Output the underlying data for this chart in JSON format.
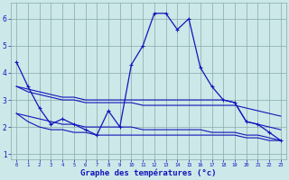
{
  "x": [
    0,
    1,
    2,
    3,
    4,
    5,
    6,
    7,
    8,
    9,
    10,
    11,
    12,
    13,
    14,
    15,
    16,
    17,
    18,
    19,
    20,
    21,
    22,
    23
  ],
  "line_main": [
    4.4,
    3.5,
    2.7,
    2.1,
    2.3,
    2.1,
    1.9,
    1.7,
    2.6,
    2.0,
    4.3,
    5.0,
    6.2,
    6.2,
    5.6,
    6.0,
    4.2,
    3.5,
    3.0,
    2.9,
    2.2,
    2.1,
    1.8,
    1.5
  ],
  "line_upper1": [
    3.5,
    3.4,
    3.3,
    3.2,
    3.1,
    3.1,
    3.0,
    3.0,
    3.0,
    3.0,
    3.0,
    3.0,
    3.0,
    3.0,
    3.0,
    3.0,
    3.0,
    3.0,
    3.0,
    2.9,
    2.2,
    2.1,
    2.0,
    1.9
  ],
  "line_upper2": [
    3.5,
    3.3,
    3.2,
    3.1,
    3.0,
    3.0,
    2.9,
    2.9,
    2.9,
    2.9,
    2.9,
    2.8,
    2.8,
    2.8,
    2.8,
    2.8,
    2.8,
    2.8,
    2.8,
    2.8,
    2.7,
    2.6,
    2.5,
    2.4
  ],
  "line_lower1": [
    2.5,
    2.4,
    2.3,
    2.2,
    2.1,
    2.1,
    2.0,
    2.0,
    2.0,
    2.0,
    2.0,
    1.9,
    1.9,
    1.9,
    1.9,
    1.9,
    1.9,
    1.8,
    1.8,
    1.8,
    1.7,
    1.7,
    1.6,
    1.5
  ],
  "line_lower2": [
    2.5,
    2.2,
    2.0,
    1.9,
    1.9,
    1.8,
    1.8,
    1.7,
    1.7,
    1.7,
    1.7,
    1.7,
    1.7,
    1.7,
    1.7,
    1.7,
    1.7,
    1.7,
    1.7,
    1.7,
    1.6,
    1.6,
    1.5,
    1.5
  ],
  "line_color": "#1414bb",
  "bg_color": "#cce8e8",
  "grid_color": "#88aaaa",
  "xlabel": "Graphe des températures (°c)",
  "ylim": [
    0.8,
    6.6
  ],
  "xlim": [
    -0.5,
    23.5
  ],
  "yticks": [
    1,
    2,
    3,
    4,
    5,
    6
  ],
  "xticks": [
    0,
    1,
    2,
    3,
    4,
    5,
    6,
    7,
    8,
    9,
    10,
    11,
    12,
    13,
    14,
    15,
    16,
    17,
    18,
    19,
    20,
    21,
    22,
    23
  ]
}
